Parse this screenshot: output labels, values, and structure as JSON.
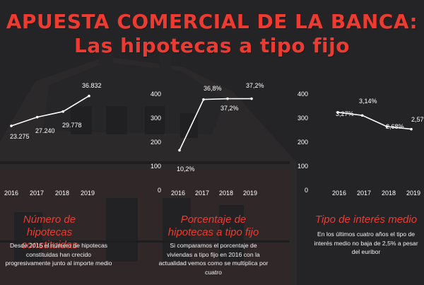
{
  "title_line1": "APUESTA COMERCIAL DE LA BANCA:",
  "title_line2": "Las hipotecas a tipo fijo",
  "colors": {
    "accent": "#ee3b31",
    "text": "#ffffff",
    "background": "#2a2a2d"
  },
  "chart_data": [
    {
      "type": "line",
      "categories": [
        "2016",
        "2017",
        "2018",
        "2019"
      ],
      "series": [
        {
          "values": [
            23275,
            27240,
            29778,
            36832
          ]
        }
      ],
      "labels": [
        "23.275",
        "27.240",
        "29.778",
        "36.832"
      ],
      "ylim": [
        22000,
        38000
      ],
      "grid": false,
      "title": "Número de hipotecas constituidas",
      "description": "Desde 2016 el número de hipotecas constituidas han crecido progresivamente junto al importe medio"
    },
    {
      "type": "line",
      "categories": [
        "2016",
        "2017",
        "2018",
        "2019"
      ],
      "series": [
        {
          "values": [
            10.2,
            36.8,
            37.2,
            37.2
          ]
        }
      ],
      "labels": [
        "10,2%",
        "36,8%",
        "37,2%",
        "37,2%"
      ],
      "yticks": [
        "400",
        "300",
        "200",
        "100",
        "0"
      ],
      "ylim": [
        0,
        40
      ],
      "grid": false,
      "title": "Porcentaje de hipotecas a tipo fijo",
      "description": "Si comparamos el porcentaje de viviendas a tipo fijo en 2016 con la actualidad vemos como se multiplica por cuatro"
    },
    {
      "type": "line",
      "categories": [
        "2016",
        "2017",
        "2018",
        "2019"
      ],
      "series": [
        {
          "values": [
            3.27,
            3.14,
            2.68,
            2.57
          ]
        }
      ],
      "labels": [
        "3,27%",
        "3,14%",
        "2,68%",
        "2,57%"
      ],
      "yticks": [
        "400",
        "300",
        "200",
        "100",
        "0"
      ],
      "ylim": [
        0,
        4
      ],
      "grid": false,
      "title": "Tipo de interés medio",
      "description": "En los últimos cuatro años el tipo de interés medio no baja de 2,5% a pesar del euribor"
    }
  ]
}
